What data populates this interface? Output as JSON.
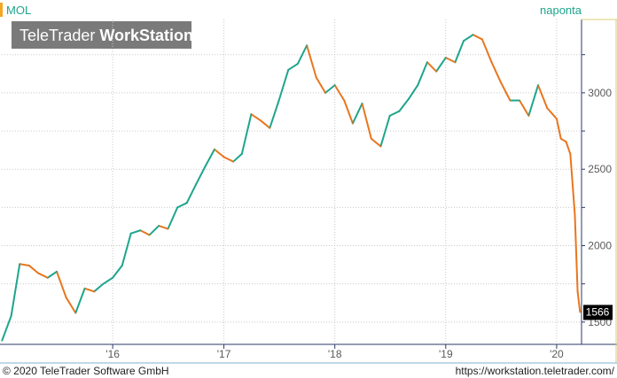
{
  "chart_data": {
    "type": "line",
    "title": "MOL",
    "period_label": "naponta",
    "watermark": {
      "brand": "TeleTrader",
      "product": "WorkStation"
    },
    "last_value_label": "1566",
    "x": [
      "2015-01-02",
      "2015-02-01",
      "2015-03-01",
      "2015-04-01",
      "2015-05-01",
      "2015-06-01",
      "2015-07-01",
      "2015-08-01",
      "2015-09-01",
      "2015-10-01",
      "2015-11-01",
      "2015-12-01",
      "2016-01-01",
      "2016-02-01",
      "2016-03-01",
      "2016-04-01",
      "2016-05-01",
      "2016-06-01",
      "2016-07-01",
      "2016-08-01",
      "2016-09-01",
      "2016-10-01",
      "2016-11-01",
      "2016-12-01",
      "2017-01-01",
      "2017-02-01",
      "2017-03-01",
      "2017-04-01",
      "2017-05-01",
      "2017-06-01",
      "2017-07-01",
      "2017-08-01",
      "2017-09-01",
      "2017-10-01",
      "2017-11-01",
      "2017-12-01",
      "2018-01-01",
      "2018-02-01",
      "2018-03-01",
      "2018-04-01",
      "2018-05-01",
      "2018-06-01",
      "2018-07-01",
      "2018-08-01",
      "2018-09-01",
      "2018-10-01",
      "2018-11-01",
      "2018-12-01",
      "2019-01-01",
      "2019-02-01",
      "2019-03-01",
      "2019-04-01",
      "2019-05-01",
      "2019-06-01",
      "2019-07-01",
      "2019-08-01",
      "2019-09-01",
      "2019-10-01",
      "2019-11-01",
      "2019-12-01",
      "2020-01-01",
      "2020-01-15",
      "2020-02-01",
      "2020-02-15",
      "2020-03-01",
      "2020-03-10",
      "2020-03-18"
    ],
    "values": [
      1380,
      1540,
      1880,
      1870,
      1820,
      1790,
      1830,
      1660,
      1560,
      1720,
      1700,
      1750,
      1790,
      1870,
      2080,
      2100,
      2070,
      2130,
      2110,
      2250,
      2280,
      2400,
      2520,
      2630,
      2580,
      2550,
      2600,
      2860,
      2820,
      2770,
      2950,
      3150,
      3190,
      3310,
      3100,
      3000,
      3050,
      2950,
      2800,
      2930,
      2700,
      2650,
      2850,
      2880,
      2960,
      3050,
      3200,
      3140,
      3230,
      3200,
      3340,
      3380,
      3350,
      3200,
      3070,
      2950,
      2950,
      2850,
      3050,
      2900,
      2830,
      2700,
      2680,
      2600,
      2200,
      1700,
      1566
    ],
    "y_ticks": [
      1500,
      2000,
      2500,
      3000
    ],
    "ylim": [
      1360,
      3480
    ],
    "x_ticks": [
      {
        "label": "'16",
        "date": "2016-01-01"
      },
      {
        "label": "'17",
        "date": "2017-01-01"
      },
      {
        "label": "'18",
        "date": "2018-01-01"
      },
      {
        "label": "'19",
        "date": "2019-01-01"
      },
      {
        "label": "'20",
        "date": "2020-01-01"
      }
    ],
    "xlim": [
      "2015-01-01",
      "2020-03-20"
    ],
    "grid": true,
    "colors": {
      "up": "#1ea58c",
      "down": "#e8761f",
      "title": "#1ea58c",
      "accent": "#f5a623",
      "border": "#2b3a67",
      "watermark_bg": "#7a7a7a",
      "last_value_bg": "#000000"
    }
  },
  "footer": {
    "copyright": "© 2020 TeleTrader Software GmbH",
    "url": "https://workstation.teletrader.com/"
  }
}
